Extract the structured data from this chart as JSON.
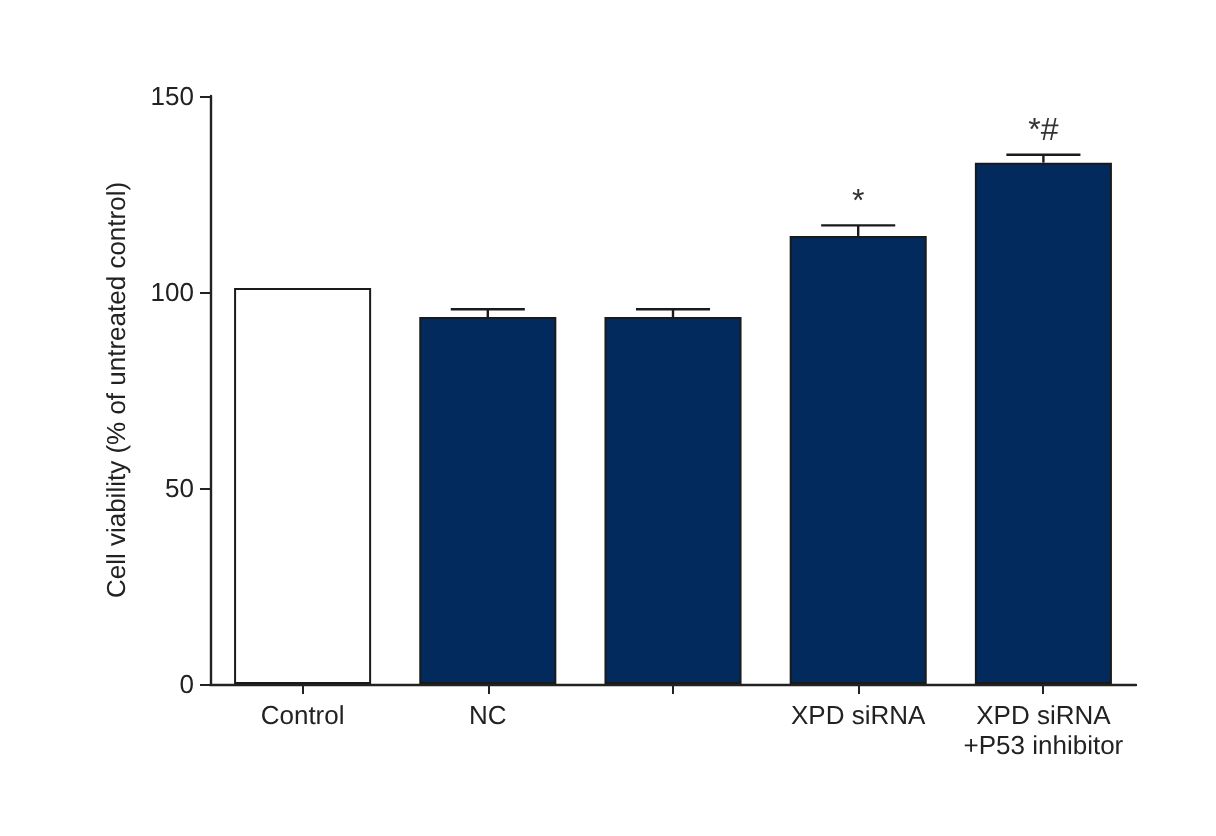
{
  "chart_data": {
    "type": "bar",
    "ylabel": "Cell viability (% of untreated control)",
    "categories": [
      "Control",
      "NC",
      null,
      "XPD siRNA",
      "XPD siRNA\n+P53 inhibitor"
    ],
    "values": [
      101,
      93.6,
      93.6,
      114.3,
      133
    ],
    "colors": [
      "#ffffff",
      "#022a5c",
      "#022a5c",
      "#022a5c",
      "#022a5c"
    ],
    "errors": [
      null,
      2,
      2,
      2.7,
      2
    ],
    "ylim": [
      0,
      150
    ],
    "yticks": [
      0,
      50,
      100,
      150
    ],
    "grid": false,
    "annotations": [
      {
        "text": "*",
        "x": "XPD siRNA",
        "y": 119
      },
      {
        "text": "*#",
        "x": "XPD siRNA\n+P53 inhibitor",
        "y": 137
      }
    ]
  }
}
